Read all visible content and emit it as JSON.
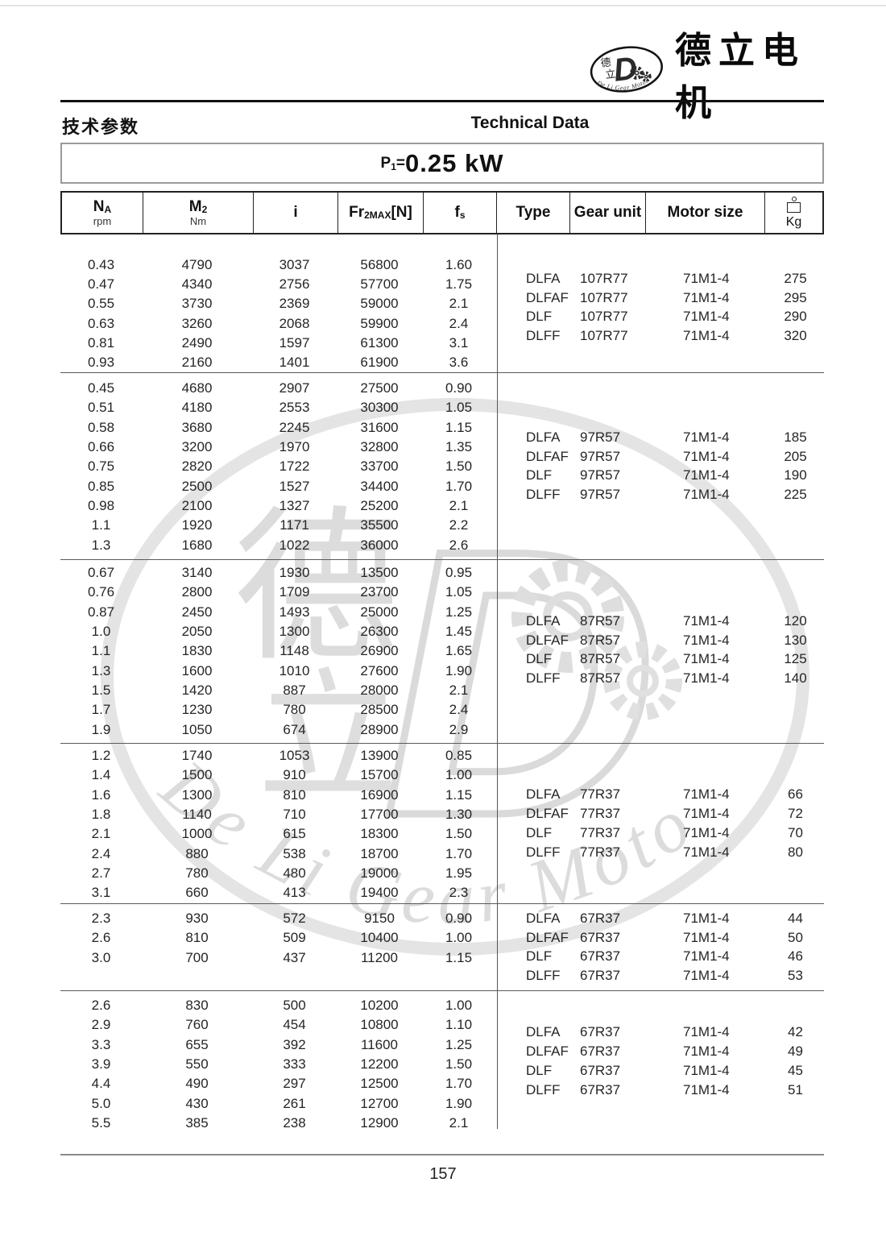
{
  "brand": {
    "name": "德立电机",
    "logo_cn_1": "德",
    "logo_cn_2": "立",
    "logo_d": "D",
    "logo_arc_text": "De Li Gear Motor"
  },
  "titles": {
    "cn": "技术参数",
    "en": "Technical Data"
  },
  "power": {
    "p": "P",
    "p_sub": "1",
    "eq": "=",
    "value": "0.25 kW"
  },
  "table_header": {
    "na": "N",
    "na_sub": "A",
    "na_unit": "rpm",
    "m2": "M",
    "m2_sub": "2",
    "m2_unit": "Nm",
    "ratio": "i",
    "fr": "Fr",
    "fr_sub": "2MAX",
    "fr_unit": "[N]",
    "fs": "f",
    "fs_sub": "s",
    "type": "Type",
    "gear_unit": "Gear unit",
    "motor_size": "Motor size",
    "kg": "Kg",
    "kg_icon": "weight-icon"
  },
  "blocks": [
    {
      "rows": [
        [
          "0.43",
          "4790",
          "3037",
          "56800",
          "1.60"
        ],
        [
          "0.47",
          "4340",
          "2756",
          "57700",
          "1.75"
        ],
        [
          "0.55",
          "3730",
          "2369",
          "59000",
          "2.1"
        ],
        [
          "0.63",
          "3260",
          "2068",
          "59900",
          "2.4"
        ],
        [
          "0.81",
          "2490",
          "1597",
          "61300",
          "3.1"
        ],
        [
          "0.93",
          "2160",
          "1401",
          "61900",
          "3.6"
        ]
      ],
      "types": [
        [
          "DLFA",
          "107R77",
          "71M1-4",
          "275"
        ],
        [
          "DLFAF",
          "107R77",
          "71M1-4",
          "295"
        ],
        [
          "DLF",
          "107R77",
          "71M1-4",
          "290"
        ],
        [
          "DLFF",
          "107R77",
          "71M1-4",
          "320"
        ]
      ]
    },
    {
      "rows": [
        [
          "0.45",
          "4680",
          "2907",
          "27500",
          "0.90"
        ],
        [
          "0.51",
          "4180",
          "2553",
          "30300",
          "1.05"
        ],
        [
          "0.58",
          "3680",
          "2245",
          "31600",
          "1.15"
        ],
        [
          "0.66",
          "3200",
          "1970",
          "32800",
          "1.35"
        ],
        [
          "0.75",
          "2820",
          "1722",
          "33700",
          "1.50"
        ],
        [
          "0.85",
          "2500",
          "1527",
          "34400",
          "1.70"
        ],
        [
          "0.98",
          "2100",
          "1327",
          "25200",
          "2.1"
        ],
        [
          "1.1",
          "1920",
          "1171",
          "35500",
          "2.2"
        ],
        [
          "1.3",
          "1680",
          "1022",
          "36000",
          "2.6"
        ]
      ],
      "types": [
        [
          "DLFA",
          "97R57",
          "71M1-4",
          "185"
        ],
        [
          "DLFAF",
          "97R57",
          "71M1-4",
          "205"
        ],
        [
          "DLF",
          "97R57",
          "71M1-4",
          "190"
        ],
        [
          "DLFF",
          "97R57",
          "71M1-4",
          "225"
        ]
      ]
    },
    {
      "rows": [
        [
          "0.67",
          "3140",
          "1930",
          "13500",
          "0.95"
        ],
        [
          "0.76",
          "2800",
          "1709",
          "23700",
          "1.05"
        ],
        [
          "0.87",
          "2450",
          "1493",
          "25000",
          "1.25"
        ],
        [
          "1.0",
          "2050",
          "1300",
          "26300",
          "1.45"
        ],
        [
          "1.1",
          "1830",
          "1148",
          "26900",
          "1.65"
        ],
        [
          "1.3",
          "1600",
          "1010",
          "27600",
          "1.90"
        ],
        [
          "1.5",
          "1420",
          "887",
          "28000",
          "2.1"
        ],
        [
          "1.7",
          "1230",
          "780",
          "28500",
          "2.4"
        ],
        [
          "1.9",
          "1050",
          "674",
          "28900",
          "2.9"
        ]
      ],
      "types": [
        [
          "DLFA",
          "87R57",
          "71M1-4",
          "120"
        ],
        [
          "DLFAF",
          "87R57",
          "71M1-4",
          "130"
        ],
        [
          "DLF",
          "87R57",
          "71M1-4",
          "125"
        ],
        [
          "DLFF",
          "87R57",
          "71M1-4",
          "140"
        ]
      ]
    },
    {
      "rows": [
        [
          "1.2",
          "1740",
          "1053",
          "13900",
          "0.85"
        ],
        [
          "1.4",
          "1500",
          "910",
          "15700",
          "1.00"
        ],
        [
          "1.6",
          "1300",
          "810",
          "16900",
          "1.15"
        ],
        [
          "1.8",
          "1140",
          "710",
          "17700",
          "1.30"
        ],
        [
          "2.1",
          "1000",
          "615",
          "18300",
          "1.50"
        ],
        [
          "2.4",
          "880",
          "538",
          "18700",
          "1.70"
        ],
        [
          "2.7",
          "780",
          "480",
          "19000",
          "1.95"
        ],
        [
          "3.1",
          "660",
          "413",
          "19400",
          "2.3"
        ]
      ],
      "types": [
        [
          "DLFA",
          "77R37",
          "71M1-4",
          "66"
        ],
        [
          "DLFAF",
          "77R37",
          "71M1-4",
          "72"
        ],
        [
          "DLF",
          "77R37",
          "71M1-4",
          "70"
        ],
        [
          "DLFF",
          "77R37",
          "71M1-4",
          "80"
        ]
      ]
    },
    {
      "rows": [
        [
          "2.3",
          "930",
          "572",
          "9150",
          "0.90"
        ],
        [
          "2.6",
          "810",
          "509",
          "10400",
          "1.00"
        ],
        [
          "3.0",
          "700",
          "437",
          "11200",
          "1.15"
        ]
      ],
      "types": [
        [
          "DLFA",
          "67R37",
          "71M1-4",
          "44"
        ],
        [
          "DLFAF",
          "67R37",
          "71M1-4",
          "50"
        ],
        [
          "DLF",
          "67R37",
          "71M1-4",
          "46"
        ],
        [
          "DLFF",
          "67R37",
          "71M1-4",
          "53"
        ]
      ]
    },
    {
      "rows": [
        [
          "2.6",
          "830",
          "500",
          "10200",
          "1.00"
        ],
        [
          "2.9",
          "760",
          "454",
          "10800",
          "1.10"
        ],
        [
          "3.3",
          "655",
          "392",
          "11600",
          "1.25"
        ],
        [
          "3.9",
          "550",
          "333",
          "12200",
          "1.50"
        ],
        [
          "4.4",
          "490",
          "297",
          "12500",
          "1.70"
        ],
        [
          "5.0",
          "430",
          "261",
          "12700",
          "1.90"
        ],
        [
          "5.5",
          "385",
          "238",
          "12900",
          "2.1"
        ]
      ],
      "types": [
        [
          "DLFA",
          "67R37",
          "71M1-4",
          "42"
        ],
        [
          "DLFAF",
          "67R37",
          "71M1-4",
          "49"
        ],
        [
          "DLF",
          "67R37",
          "71M1-4",
          "45"
        ],
        [
          "DLFF",
          "67R37",
          "71M1-4",
          "51"
        ]
      ]
    }
  ],
  "watermark": {
    "cn1": "德",
    "cn2": "立",
    "d": "D",
    "arc_text": "De Li Gear Motor"
  },
  "footer": {
    "page_number": "157"
  }
}
